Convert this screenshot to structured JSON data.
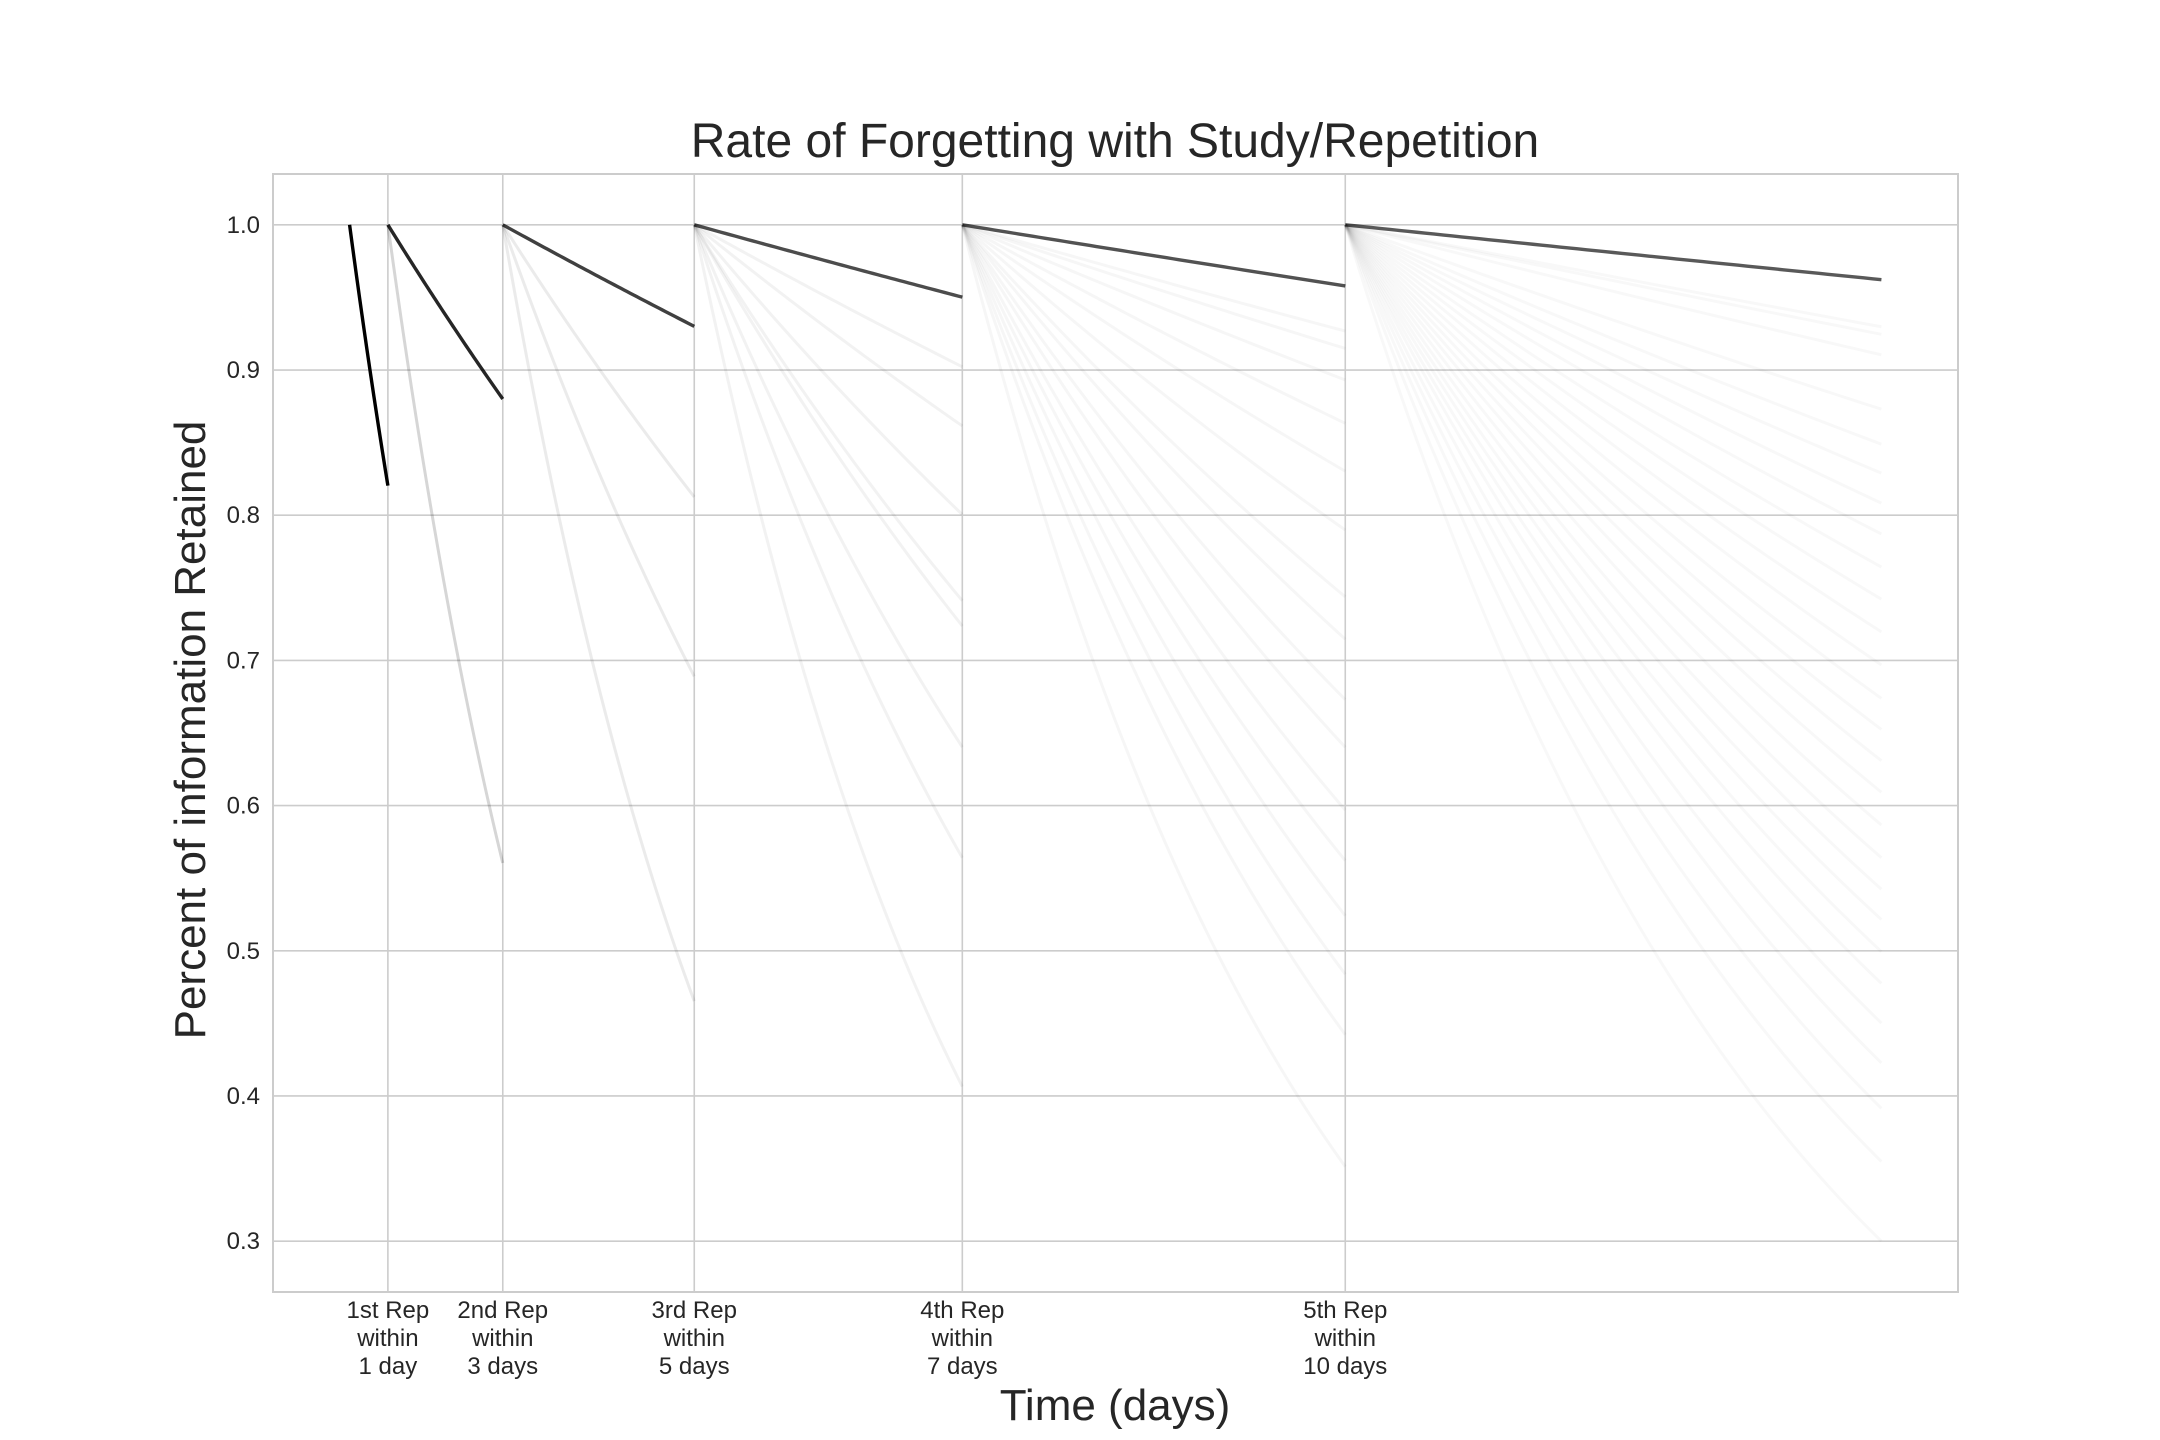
{
  "chart_data": {
    "type": "line",
    "title": "Rate of Forgetting with Study/Repetition",
    "xlabel": "Time (days)",
    "ylabel": "Percent of information Retained",
    "xlim": [
      -2.0,
      42.0
    ],
    "ylim": [
      0.265,
      1.035
    ],
    "grid": true,
    "legend": "none",
    "y_ticks": [
      0.3,
      0.4,
      0.5,
      0.6,
      0.7,
      0.8,
      0.9,
      1.0
    ],
    "y_tick_labels": [
      "0.3",
      "0.4",
      "0.5",
      "0.6",
      "0.7",
      "0.8",
      "0.9",
      "1.0"
    ],
    "x_ticks": [
      1,
      4,
      9,
      16,
      26
    ],
    "x_tick_labels": [
      [
        "1st Rep",
        "within",
        "1 day"
      ],
      [
        "2nd Rep",
        "within",
        "3 days"
      ],
      [
        "3rd Rep",
        "within",
        "5 days"
      ],
      [
        "4th Rep",
        "within",
        "7 days"
      ],
      [
        "5th Rep",
        "within",
        "10 days"
      ]
    ],
    "colors": {
      "line": "#000000",
      "grid": "#cccccc",
      "frame": "#cccccc"
    },
    "series": [
      {
        "x": [
          0,
          1
        ],
        "k": 0.198,
        "opacity": 1.0
      },
      {
        "x": [
          1,
          4
        ],
        "k": 0.0426,
        "opacity": 0.85
      },
      {
        "x": [
          4,
          9
        ],
        "k": 0.0145,
        "opacity": 0.75
      },
      {
        "x": [
          9,
          16
        ],
        "k": 0.0073,
        "opacity": 0.7
      },
      {
        "x": [
          16,
          26
        ],
        "k": 0.0043,
        "opacity": 0.68
      },
      {
        "x": [
          26,
          40
        ],
        "k": 0.00275,
        "opacity": 0.65
      }
    ],
    "forgotten_series": [
      {
        "x0": 1,
        "x1": 4,
        "k_list": [
          0.193
        ],
        "opacity": 0.16
      },
      {
        "x0": 4,
        "x1": 9,
        "k_list": [
          0.0415,
          0.0745,
          0.153
        ],
        "opacity": 0.08
      },
      {
        "x0": 9,
        "x1": 16,
        "k_list": [
          0.0147,
          0.0213,
          0.0318,
          0.0428,
          0.0462,
          0.0637,
          0.0818,
          0.1286
        ],
        "opacity": 0.05
      },
      {
        "x0": 16,
        "x1": 26,
        "k_list": [
          0.0076,
          0.0089,
          0.0113,
          0.0147,
          0.0186,
          0.0236,
          0.0296,
          0.0336,
          0.0396,
          0.0446,
          0.0516,
          0.0576,
          0.0646,
          0.0726,
          0.0816,
          0.1046
        ],
        "opacity": 0.035
      },
      {
        "x0": 26,
        "x1": 40,
        "k_list": [
          0.0052,
          0.0056,
          0.0067,
          0.0097,
          0.0117,
          0.0134,
          0.0152,
          0.0171,
          0.0192,
          0.0213,
          0.0235,
          0.0258,
          0.0282,
          0.0305,
          0.0329,
          0.0354,
          0.0381,
          0.0409,
          0.0437,
          0.0465,
          0.0496,
          0.0528,
          0.057,
          0.0615,
          0.067,
          0.074,
          0.086
        ],
        "opacity": 0.028
      }
    ]
  }
}
